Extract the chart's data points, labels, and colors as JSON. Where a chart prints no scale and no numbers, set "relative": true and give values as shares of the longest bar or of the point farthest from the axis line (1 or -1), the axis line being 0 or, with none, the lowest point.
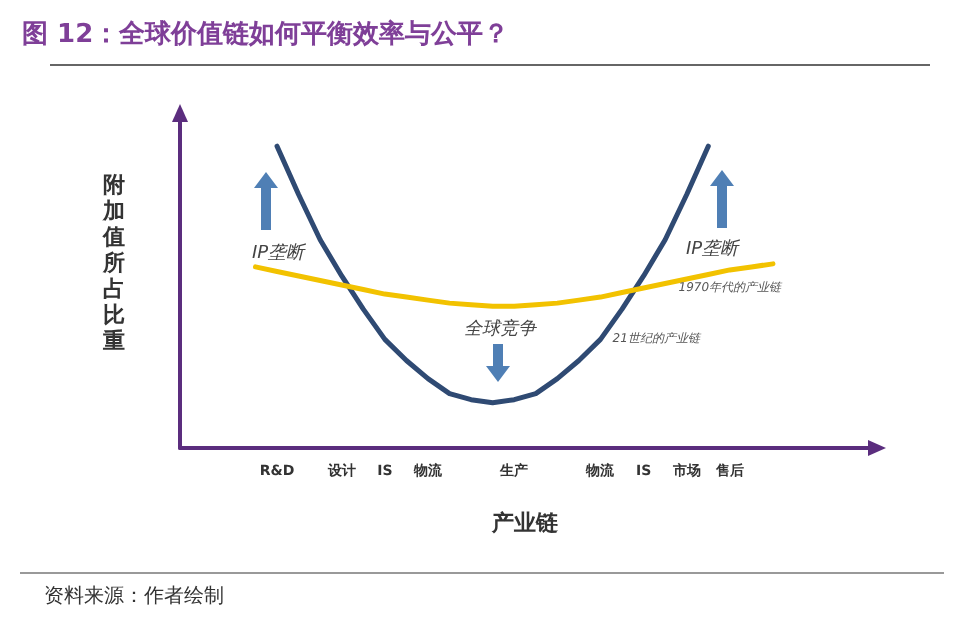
{
  "chart_data": {
    "type": "line",
    "title": "图 12：全球价值链如何平衡效率与公平？",
    "xlabel": "产业链",
    "ylabel": "附加值所占比重",
    "relative": true,
    "grid": false,
    "legend": false,
    "marker": "none",
    "line_style": "solid",
    "categories": [
      null,
      null,
      null,
      null,
      "R&D",
      null,
      null,
      "设计",
      null,
      "IS",
      null,
      "物流",
      null,
      null,
      null,
      "生产",
      null,
      null,
      null,
      "物流",
      null,
      "IS",
      null,
      "市场",
      null,
      "售后",
      null,
      null,
      null,
      null,
      null,
      null
    ],
    "series": [
      {
        "name": "21世纪的产业链",
        "color": "#2f4a73",
        "values": [
          null,
          null,
          null,
          null,
          1.0,
          0.84,
          0.69,
          0.57,
          0.46,
          0.36,
          0.29,
          0.23,
          0.18,
          0.16,
          0.15,
          0.16,
          0.18,
          0.23,
          0.29,
          0.36,
          0.46,
          0.57,
          0.69,
          0.84,
          1.0,
          null,
          null,
          null,
          null,
          null,
          null,
          null
        ]
      },
      {
        "name": "1970年代的产业链",
        "color": "#f2c200",
        "values": [
          null,
          null,
          null,
          0.6,
          0.585,
          0.57,
          0.555,
          0.54,
          0.525,
          0.51,
          0.5,
          0.49,
          0.48,
          0.475,
          0.47,
          0.47,
          0.475,
          0.48,
          0.49,
          0.5,
          0.515,
          0.53,
          0.545,
          0.56,
          0.575,
          0.59,
          0.6,
          0.61,
          null,
          null,
          null,
          null
        ]
      }
    ],
    "annotations": [
      "IP垄断",
      "IP垄断",
      "全球竞争",
      "资料来源：作者绘制"
    ]
  }
}
